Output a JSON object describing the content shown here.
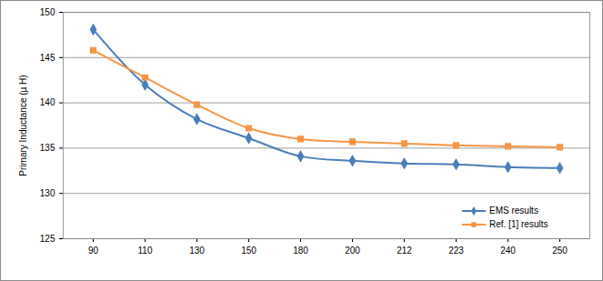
{
  "chart_data": {
    "type": "line",
    "y_label": "Primary Inductance (µ H)",
    "categories": [
      90,
      110,
      130,
      150,
      180,
      200,
      212,
      223,
      240,
      250
    ],
    "series": [
      {
        "name": "EMS results",
        "color": "#4a7ebb",
        "marker": "diamond",
        "line_style": "smooth",
        "values": [
          148.1,
          142.0,
          138.2,
          136.1,
          134.1,
          133.6,
          133.3,
          133.2,
          132.9,
          132.8
        ]
      },
      {
        "name": "Ref. [1] results",
        "color": "#f79646",
        "marker": "square",
        "line_style": "smooth",
        "values": [
          145.8,
          142.8,
          139.8,
          137.2,
          136.0,
          135.7,
          135.5,
          135.3,
          135.2,
          135.1
        ]
      }
    ],
    "ylim": [
      125,
      150
    ],
    "yticks": [
      125,
      130,
      135,
      140,
      145,
      150
    ],
    "grid": true,
    "legend": "bottom-right"
  }
}
